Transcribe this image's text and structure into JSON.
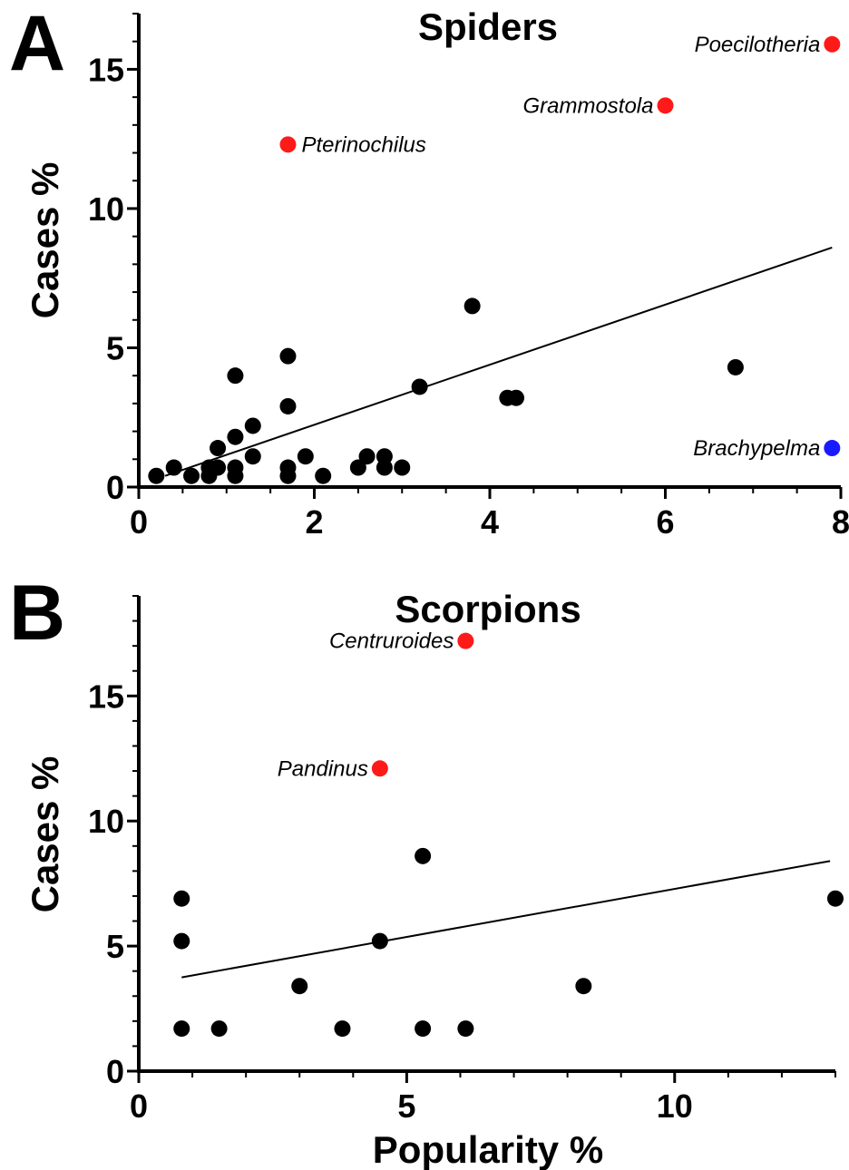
{
  "chart_data": [
    {
      "panel": "A",
      "type": "scatter",
      "title": "Spiders",
      "xlabel": "",
      "ylabel": "Cases %",
      "xlim": [
        0,
        8
      ],
      "ylim": [
        0,
        17
      ],
      "xticks": [
        "0",
        "2",
        "4",
        "6",
        "8"
      ],
      "xtick_values": [
        0,
        2,
        4,
        6,
        8
      ],
      "yticks": [
        "0",
        "5",
        "10",
        "15"
      ],
      "ytick_values": [
        0,
        5,
        10,
        15
      ],
      "x_minor_step": 0.5,
      "y_minor_step": 1,
      "points": [
        {
          "x": 0.2,
          "y": 0.4
        },
        {
          "x": 0.4,
          "y": 0.7
        },
        {
          "x": 0.6,
          "y": 0.4
        },
        {
          "x": 0.8,
          "y": 0.4
        },
        {
          "x": 0.8,
          "y": 0.7
        },
        {
          "x": 0.9,
          "y": 0.7
        },
        {
          "x": 0.9,
          "y": 1.4
        },
        {
          "x": 1.1,
          "y": 0.4
        },
        {
          "x": 1.1,
          "y": 0.7
        },
        {
          "x": 1.1,
          "y": 1.8
        },
        {
          "x": 1.1,
          "y": 4.0
        },
        {
          "x": 1.3,
          "y": 1.1
        },
        {
          "x": 1.3,
          "y": 2.2
        },
        {
          "x": 1.7,
          "y": 0.4
        },
        {
          "x": 1.7,
          "y": 0.7
        },
        {
          "x": 1.7,
          "y": 2.9
        },
        {
          "x": 1.7,
          "y": 4.7
        },
        {
          "x": 1.9,
          "y": 1.1
        },
        {
          "x": 2.1,
          "y": 0.4
        },
        {
          "x": 2.5,
          "y": 0.7
        },
        {
          "x": 2.6,
          "y": 1.1
        },
        {
          "x": 2.8,
          "y": 0.7
        },
        {
          "x": 2.8,
          "y": 1.1
        },
        {
          "x": 3.0,
          "y": 0.7
        },
        {
          "x": 3.2,
          "y": 3.6
        },
        {
          "x": 3.8,
          "y": 6.5
        },
        {
          "x": 4.2,
          "y": 3.2
        },
        {
          "x": 4.3,
          "y": 3.2
        },
        {
          "x": 6.8,
          "y": 4.3
        }
      ],
      "highlights": [
        {
          "label": "Poecilotheria",
          "x": 7.9,
          "y": 15.9,
          "color": "#ff1a1a",
          "label_side": "left"
        },
        {
          "label": "Grammostola",
          "x": 6.0,
          "y": 13.7,
          "color": "#ff1a1a",
          "label_side": "left"
        },
        {
          "label": "Pterinochilus",
          "x": 1.7,
          "y": 12.3,
          "color": "#ff1a1a",
          "label_side": "right"
        },
        {
          "label": "Brachypelma",
          "x": 7.9,
          "y": 1.4,
          "color": "#1a1aff",
          "label_side": "left"
        }
      ],
      "fit_line": {
        "x": [
          0.3,
          7.9
        ],
        "y": [
          0.4,
          8.6
        ]
      },
      "point_color": "#000000"
    },
    {
      "panel": "B",
      "type": "scatter",
      "title": "Scorpions",
      "xlabel": "Popularity %",
      "ylabel": "Cases %",
      "xlim": [
        0,
        13
      ],
      "ylim": [
        0,
        19
      ],
      "xticks": [
        "0",
        "5",
        "10"
      ],
      "xtick_values": [
        0,
        5,
        10
      ],
      "yticks": [
        "0",
        "5",
        "10",
        "15"
      ],
      "ytick_values": [
        0,
        5,
        10,
        15
      ],
      "x_minor_step": 1,
      "y_minor_step": 1,
      "points": [
        {
          "x": 0.8,
          "y": 1.7
        },
        {
          "x": 0.8,
          "y": 5.2
        },
        {
          "x": 0.8,
          "y": 6.9
        },
        {
          "x": 1.5,
          "y": 1.7
        },
        {
          "x": 3.0,
          "y": 3.4
        },
        {
          "x": 3.8,
          "y": 1.7
        },
        {
          "x": 4.5,
          "y": 5.2
        },
        {
          "x": 5.3,
          "y": 1.7
        },
        {
          "x": 5.3,
          "y": 8.6
        },
        {
          "x": 6.1,
          "y": 1.7
        },
        {
          "x": 8.3,
          "y": 3.4
        },
        {
          "x": 13.0,
          "y": 6.9
        }
      ],
      "highlights": [
        {
          "label": "Centruroides",
          "x": 6.1,
          "y": 17.2,
          "color": "#ff1a1a",
          "label_side": "left"
        },
        {
          "label": "Pandinus",
          "x": 4.5,
          "y": 12.1,
          "color": "#ff1a1a",
          "label_side": "left"
        }
      ],
      "fit_line": {
        "x": [
          0.8,
          12.9
        ],
        "y": [
          3.75,
          8.4
        ]
      },
      "point_color": "#000000"
    }
  ]
}
